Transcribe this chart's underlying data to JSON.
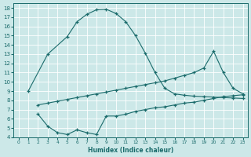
{
  "xlabel": "Humidex (Indice chaleur)",
  "bg_color": "#cce8e8",
  "grid_color": "#ffffff",
  "line_color": "#1a6b6b",
  "top_x": [
    1,
    3,
    5,
    6,
    7,
    8,
    9,
    10,
    11,
    12,
    13,
    14,
    15,
    16,
    17,
    18,
    19,
    20,
    21,
    22,
    23
  ],
  "top_y": [
    9.0,
    13.0,
    14.9,
    16.5,
    17.3,
    17.8,
    17.85,
    17.4,
    16.5,
    15.0,
    13.1,
    11.0,
    9.3,
    8.7,
    8.55,
    8.45,
    8.4,
    8.35,
    8.3,
    8.25,
    8.2
  ],
  "mid_x": [
    2,
    3,
    4,
    5,
    6,
    7,
    8,
    9,
    10,
    11,
    12,
    13,
    14,
    15,
    16,
    17,
    18,
    19,
    20,
    21,
    22,
    23
  ],
  "mid_y": [
    7.5,
    7.7,
    7.9,
    8.1,
    8.3,
    8.5,
    8.7,
    8.9,
    9.1,
    9.3,
    9.5,
    9.7,
    9.9,
    10.1,
    10.4,
    10.7,
    11.0,
    11.5,
    13.3,
    11.0,
    9.3,
    8.7
  ],
  "bot_x": [
    2,
    3,
    4,
    5,
    6,
    7,
    8,
    9,
    10,
    11,
    12,
    13,
    14,
    15,
    16,
    17,
    18,
    19,
    20,
    21,
    22,
    23
  ],
  "bot_y": [
    6.5,
    5.2,
    4.5,
    4.3,
    4.8,
    4.5,
    4.3,
    6.3,
    6.3,
    6.5,
    6.8,
    7.0,
    7.2,
    7.3,
    7.5,
    7.7,
    7.8,
    8.0,
    8.2,
    8.4,
    8.5,
    8.6
  ],
  "xlim": [
    -0.5,
    23.5
  ],
  "ylim": [
    4,
    18.5
  ],
  "yticks": [
    4,
    5,
    6,
    7,
    8,
    9,
    10,
    11,
    12,
    13,
    14,
    15,
    16,
    17,
    18
  ],
  "xticks": [
    0,
    1,
    2,
    3,
    4,
    5,
    6,
    7,
    8,
    9,
    10,
    11,
    12,
    13,
    14,
    15,
    16,
    17,
    18,
    19,
    20,
    21,
    22,
    23
  ]
}
